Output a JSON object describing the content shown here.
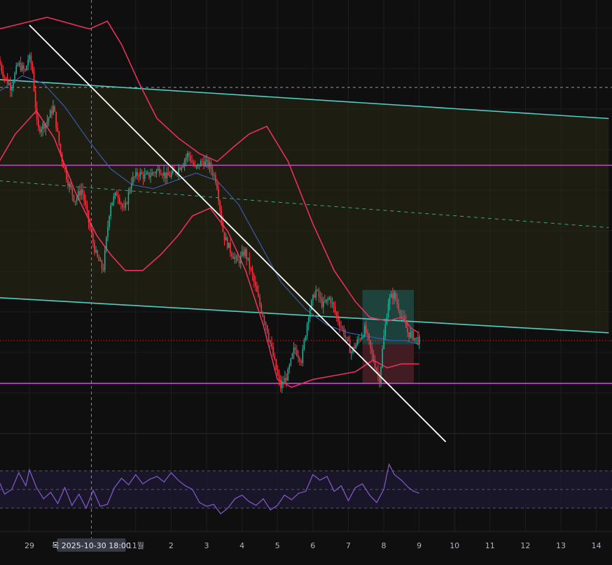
{
  "colors": {
    "background": "#0f0f10",
    "grid": "#1e1e22",
    "up_candle": "#22ab94",
    "down_candle": "#f23645",
    "bollinger": "#e9305a",
    "basis": "#3a5aa8",
    "channel": "#4fd1c5",
    "channel_fill": "#2a2a14",
    "horizontal_level": "#c04fd0",
    "trendline": "#ffffff",
    "rsi_line": "#7e57c2",
    "rsi_band": "#1d1830",
    "tp_zone": "#1e4a44",
    "sl_zone": "#4a1e26"
  },
  "crosshair": {
    "label": "목 2025-10-30   18:00"
  },
  "chart_data": {
    "type": "candlestick",
    "x_axis": {
      "tick_labels": [
        "29",
        "11월",
        "2",
        "3",
        "4",
        "5",
        "6",
        "7",
        "8",
        "9",
        "10",
        "11",
        "12",
        "13",
        "14"
      ],
      "tick_days": [
        29,
        32,
        33,
        34,
        35,
        36,
        37,
        38,
        39,
        40,
        41,
        42,
        43,
        44,
        45
      ],
      "range_days": [
        28.15,
        45.35
      ]
    },
    "y_range": [
      0,
      100
    ],
    "price_path": [
      [
        28.15,
        86
      ],
      [
        28.3,
        82
      ],
      [
        28.5,
        79
      ],
      [
        28.7,
        85
      ],
      [
        28.9,
        83
      ],
      [
        29.0,
        87
      ],
      [
        29.1,
        84
      ],
      [
        29.25,
        68
      ],
      [
        29.5,
        70
      ],
      [
        29.7,
        74
      ],
      [
        29.9,
        62
      ],
      [
        30.1,
        55
      ],
      [
        30.3,
        50
      ],
      [
        30.5,
        53
      ],
      [
        30.7,
        44
      ],
      [
        30.9,
        36
      ],
      [
        31.1,
        32
      ],
      [
        31.3,
        49
      ],
      [
        31.5,
        52
      ],
      [
        31.7,
        47
      ],
      [
        31.9,
        55
      ],
      [
        32.1,
        57
      ],
      [
        32.3,
        56
      ],
      [
        32.5,
        57
      ],
      [
        32.7,
        58
      ],
      [
        32.9,
        56
      ],
      [
        33.1,
        57
      ],
      [
        33.3,
        59
      ],
      [
        33.5,
        62
      ],
      [
        33.7,
        58
      ],
      [
        33.9,
        60
      ],
      [
        34.1,
        59
      ],
      [
        34.3,
        55
      ],
      [
        34.5,
        41
      ],
      [
        34.7,
        37
      ],
      [
        34.9,
        34
      ],
      [
        35.1,
        37
      ],
      [
        35.3,
        31
      ],
      [
        35.5,
        24
      ],
      [
        35.7,
        18
      ],
      [
        35.9,
        10
      ],
      [
        36.1,
        2
      ],
      [
        36.3,
        5
      ],
      [
        36.5,
        12
      ],
      [
        36.7,
        9
      ],
      [
        36.9,
        21
      ],
      [
        37.1,
        27
      ],
      [
        37.3,
        23
      ],
      [
        37.5,
        25
      ],
      [
        37.7,
        20
      ],
      [
        37.9,
        16
      ],
      [
        38.1,
        11
      ],
      [
        38.3,
        14
      ],
      [
        38.5,
        17
      ],
      [
        38.7,
        10
      ],
      [
        38.9,
        4
      ],
      [
        39.0,
        13
      ],
      [
        39.15,
        24
      ],
      [
        39.3,
        26
      ],
      [
        39.5,
        21
      ],
      [
        39.7,
        16
      ],
      [
        39.85,
        15
      ],
      [
        40.0,
        14
      ]
    ],
    "bollinger_upper": [
      [
        28.15,
        94
      ],
      [
        29.5,
        97
      ],
      [
        30.7,
        94
      ],
      [
        31.2,
        96
      ],
      [
        31.6,
        90
      ],
      [
        32.1,
        80
      ],
      [
        32.6,
        71
      ],
      [
        33.2,
        66
      ],
      [
        33.8,
        62
      ],
      [
        34.3,
        60
      ],
      [
        34.8,
        64
      ],
      [
        35.2,
        67
      ],
      [
        35.7,
        69
      ],
      [
        36.3,
        60
      ],
      [
        37.0,
        44
      ],
      [
        37.6,
        32
      ],
      [
        38.2,
        24
      ],
      [
        38.6,
        20
      ],
      [
        39.1,
        19
      ],
      [
        39.5,
        20
      ],
      [
        39.8,
        17
      ],
      [
        40.0,
        16
      ]
    ],
    "bollinger_lower": [
      [
        28.15,
        60
      ],
      [
        28.6,
        67
      ],
      [
        29.2,
        73
      ],
      [
        29.7,
        66
      ],
      [
        30.3,
        52
      ],
      [
        30.9,
        41
      ],
      [
        31.3,
        36
      ],
      [
        31.7,
        32
      ],
      [
        32.2,
        32
      ],
      [
        32.7,
        36
      ],
      [
        33.2,
        41
      ],
      [
        33.6,
        46
      ],
      [
        34.1,
        48
      ],
      [
        34.6,
        42
      ],
      [
        35.1,
        32
      ],
      [
        35.6,
        18
      ],
      [
        36.0,
        4
      ],
      [
        36.4,
        2
      ],
      [
        37.0,
        4
      ],
      [
        37.6,
        5
      ],
      [
        38.2,
        6
      ],
      [
        38.7,
        9
      ],
      [
        39.1,
        7
      ],
      [
        39.5,
        8
      ],
      [
        40.0,
        8
      ]
    ],
    "bollinger_basis": [
      [
        28.15,
        78
      ],
      [
        28.8,
        82
      ],
      [
        29.4,
        80
      ],
      [
        30.0,
        74
      ],
      [
        30.7,
        65
      ],
      [
        31.3,
        58
      ],
      [
        31.9,
        54
      ],
      [
        32.5,
        53
      ],
      [
        33.1,
        55
      ],
      [
        33.7,
        57
      ],
      [
        34.3,
        55
      ],
      [
        34.9,
        49
      ],
      [
        35.5,
        39
      ],
      [
        36.1,
        29
      ],
      [
        36.8,
        22
      ],
      [
        37.4,
        18
      ],
      [
        38.0,
        16
      ],
      [
        38.6,
        15
      ],
      [
        39.2,
        14
      ],
      [
        39.6,
        14
      ],
      [
        40.0,
        13
      ]
    ],
    "channel_upper": [
      [
        28.15,
        81
      ],
      [
        45.35,
        71
      ]
    ],
    "channel_mid": [
      [
        28.15,
        55
      ],
      [
        45.35,
        43
      ]
    ],
    "channel_lower": [
      [
        28.15,
        25
      ],
      [
        45.35,
        16
      ]
    ],
    "horizontal_levels": [
      59,
      3
    ],
    "dashed_level": 79,
    "dotted_last_price": 14,
    "trendline": [
      [
        29.0,
        95
      ],
      [
        40.75,
        -12
      ]
    ],
    "crosshair_day": 30.75,
    "position_zones": {
      "take_profit": {
        "from_day": 38.4,
        "to_day": 39.85,
        "bottom": 13,
        "top": 27
      },
      "stop_loss": {
        "from_day": 38.4,
        "to_day": 39.85,
        "bottom": 3,
        "top": 13
      }
    },
    "rsi": {
      "levels": [
        70,
        50,
        30
      ],
      "range": [
        20,
        80
      ],
      "values": [
        [
          28.15,
          58
        ],
        [
          28.3,
          45
        ],
        [
          28.5,
          50
        ],
        [
          28.7,
          68
        ],
        [
          28.9,
          54
        ],
        [
          29.0,
          71
        ],
        [
          29.2,
          52
        ],
        [
          29.4,
          40
        ],
        [
          29.6,
          47
        ],
        [
          29.8,
          35
        ],
        [
          30.0,
          52
        ],
        [
          30.2,
          33
        ],
        [
          30.4,
          45
        ],
        [
          30.6,
          30
        ],
        [
          30.8,
          49
        ],
        [
          31.0,
          32
        ],
        [
          31.2,
          34
        ],
        [
          31.4,
          52
        ],
        [
          31.6,
          62
        ],
        [
          31.8,
          55
        ],
        [
          32.0,
          66
        ],
        [
          32.2,
          56
        ],
        [
          32.4,
          61
        ],
        [
          32.6,
          64
        ],
        [
          32.8,
          58
        ],
        [
          33.0,
          68
        ],
        [
          33.2,
          60
        ],
        [
          33.4,
          54
        ],
        [
          33.6,
          50
        ],
        [
          33.8,
          36
        ],
        [
          34.0,
          32
        ],
        [
          34.2,
          34
        ],
        [
          34.4,
          24
        ],
        [
          34.6,
          30
        ],
        [
          34.8,
          40
        ],
        [
          35.0,
          44
        ],
        [
          35.2,
          37
        ],
        [
          35.4,
          33
        ],
        [
          35.6,
          40
        ],
        [
          35.8,
          28
        ],
        [
          36.0,
          33
        ],
        [
          36.2,
          44
        ],
        [
          36.4,
          39
        ],
        [
          36.6,
          46
        ],
        [
          36.8,
          48
        ],
        [
          37.0,
          66
        ],
        [
          37.2,
          60
        ],
        [
          37.4,
          64
        ],
        [
          37.6,
          48
        ],
        [
          37.8,
          54
        ],
        [
          38.0,
          38
        ],
        [
          38.2,
          52
        ],
        [
          38.4,
          56
        ],
        [
          38.6,
          44
        ],
        [
          38.8,
          36
        ],
        [
          39.0,
          50
        ],
        [
          39.15,
          77
        ],
        [
          39.3,
          66
        ],
        [
          39.5,
          60
        ],
        [
          39.7,
          52
        ],
        [
          39.85,
          48
        ],
        [
          40.0,
          46
        ]
      ]
    }
  }
}
